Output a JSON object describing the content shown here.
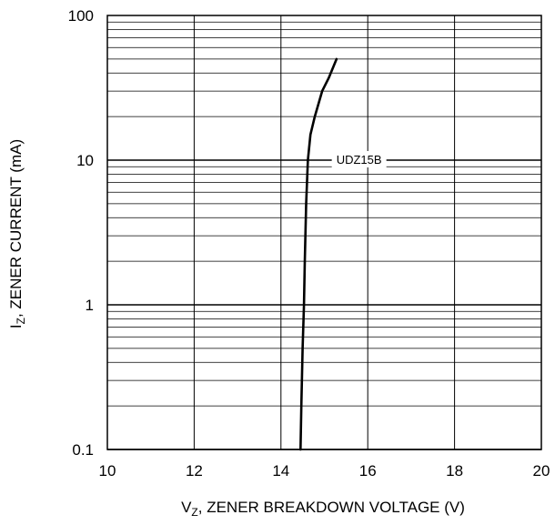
{
  "chart_data": {
    "type": "line",
    "x_scale": "linear",
    "y_scale": "log",
    "xlim": [
      10,
      20
    ],
    "ylim": [
      0.1,
      100
    ],
    "x_ticks": [
      "10",
      "12",
      "14",
      "16",
      "18",
      "20"
    ],
    "y_ticks": [
      "0.1",
      "1",
      "10",
      "100"
    ],
    "grid": true,
    "xlabel": {
      "main": "V",
      "sub": "Z",
      "rest": ", ZENER BREAKDOWN VOLTAGE (V)"
    },
    "ylabel": {
      "main": "I",
      "sub": "Z",
      "rest": ", ZENER CURRENT (mA)"
    },
    "series": [
      {
        "name": "UDZ15B",
        "x": [
          14.45,
          14.47,
          14.5,
          14.53,
          14.55,
          14.58,
          14.62,
          14.68,
          14.78,
          14.95,
          15.1,
          15.28
        ],
        "y": [
          0.1,
          0.2,
          0.5,
          1,
          2,
          5,
          10,
          15,
          20,
          30,
          37,
          50
        ]
      }
    ],
    "annotations": [
      {
        "text": "UDZ15B",
        "x": 15.8,
        "y": 10
      }
    ]
  }
}
